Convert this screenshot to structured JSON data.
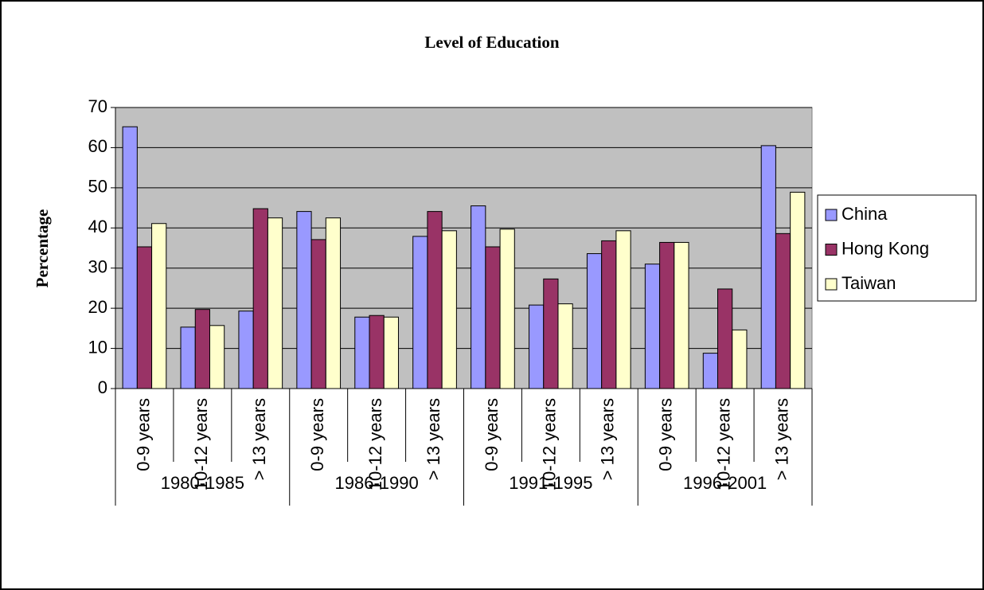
{
  "chart_data": {
    "type": "bar",
    "title": "Level of Education",
    "y_label": "Percentage",
    "categories": [
      "0-9 years",
      "10-12 years",
      "> 13 years",
      "0-9 years",
      "10-12 years",
      "> 13 years",
      "0-9 years",
      "10-12 years",
      "> 13 years",
      "0-9 years",
      "10-12 years",
      "> 13 years"
    ],
    "groups": [
      "1980-1985",
      "1986-1990",
      "1991-1995",
      "1996-2001"
    ],
    "series": [
      {
        "name": "China",
        "color": "#9999ff",
        "values": [
          65.2,
          15.3,
          19.3,
          44.1,
          17.8,
          37.9,
          45.5,
          20.8,
          33.6,
          31.0,
          8.8,
          60.5
        ]
      },
      {
        "name": "Hong Kong",
        "color": "#993366",
        "values": [
          35.3,
          19.7,
          44.8,
          37.1,
          18.2,
          44.1,
          35.3,
          27.3,
          36.8,
          36.4,
          24.8,
          38.6
        ]
      },
      {
        "name": "Taiwan",
        "color": "#ffffcc",
        "values": [
          41.1,
          15.7,
          42.5,
          42.5,
          17.8,
          39.3,
          39.7,
          21.1,
          39.3,
          36.4,
          14.6,
          48.9
        ]
      }
    ],
    "ylim": [
      0,
      70
    ],
    "yticks": [
      0,
      10,
      20,
      30,
      40,
      50,
      60,
      70
    ],
    "grid": true,
    "legend": "right"
  }
}
